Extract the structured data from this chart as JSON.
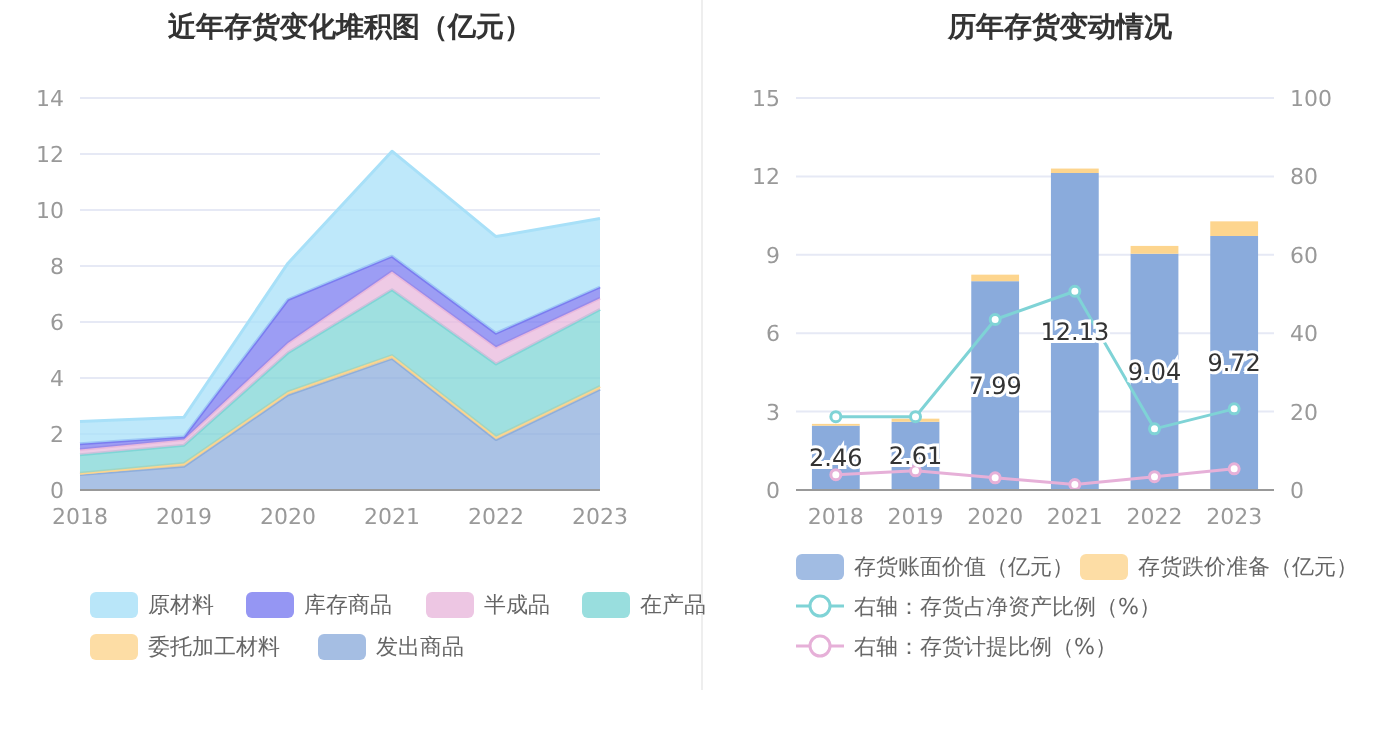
{
  "chart_data": [
    {
      "type": "area",
      "title": "近年存货变化堆积图（亿元）",
      "stacked": true,
      "categories": [
        "2018",
        "2019",
        "2020",
        "2021",
        "2022",
        "2023"
      ],
      "ylim": [
        0,
        14
      ],
      "yticks": [
        0,
        2,
        4,
        6,
        8,
        10,
        12,
        14
      ],
      "grid": "y",
      "legend": "bottom",
      "series": [
        {
          "name": "发出商品",
          "color": "#8eaedc",
          "values": [
            0.55,
            0.85,
            3.4,
            4.7,
            1.8,
            3.6
          ]
        },
        {
          "name": "委托加工材料",
          "color": "#fdd58e",
          "values": [
            0.05,
            0.1,
            0.1,
            0.1,
            0.1,
            0.1
          ]
        },
        {
          "name": "在产品",
          "color": "#7fd6d6",
          "values": [
            0.66,
            0.65,
            1.4,
            2.35,
            2.6,
            2.75
          ]
        },
        {
          "name": "半成品",
          "color": "#e8b8dc",
          "values": [
            0.19,
            0.2,
            0.35,
            0.65,
            0.6,
            0.4
          ]
        },
        {
          "name": "库存商品",
          "color": "#7b7cf0",
          "values": [
            0.2,
            0.1,
            1.55,
            0.55,
            0.5,
            0.4
          ]
        },
        {
          "name": "原材料",
          "color": "#a8e0f8",
          "values": [
            0.8,
            0.7,
            1.3,
            3.75,
            3.45,
            2.45
          ]
        }
      ]
    },
    {
      "type": "bar",
      "title": "历年存货变动情况",
      "stacked": true,
      "categories": [
        "2018",
        "2019",
        "2020",
        "2021",
        "2022",
        "2023"
      ],
      "ylim": [
        0,
        15
      ],
      "yticks": [
        0,
        3,
        6,
        9,
        12,
        15
      ],
      "y2lim": [
        0,
        100
      ],
      "y2ticks": [
        0,
        20,
        40,
        60,
        80,
        100
      ],
      "grid": "y",
      "legend": "bottom",
      "series": [
        {
          "name": "存货账面价值（亿元）",
          "color": "#8aabdc",
          "values": [
            2.46,
            2.61,
            7.99,
            12.13,
            9.04,
            9.72
          ],
          "value_labels": [
            "2.46",
            "2.61",
            "7.99",
            "12.13",
            "9.04",
            "9.72"
          ]
        },
        {
          "name": "存货跌价准备（亿元）",
          "color": "#fdd58e",
          "values": [
            0.07,
            0.12,
            0.25,
            0.17,
            0.3,
            0.56
          ]
        },
        {
          "name": "右轴：存货占净资产比例（%）",
          "type": "line",
          "axis": "y2",
          "marker": "circle",
          "color": "#7fd3d6",
          "values": [
            18.7,
            18.7,
            43.5,
            50.7,
            15.6,
            20.7
          ]
        },
        {
          "name": "右轴：存货计提比例（%）",
          "type": "line",
          "axis": "y2",
          "marker": "circle",
          "color": "#e6b0d8",
          "values": [
            3.9,
            4.9,
            3.1,
            1.4,
            3.4,
            5.4
          ]
        }
      ]
    }
  ]
}
